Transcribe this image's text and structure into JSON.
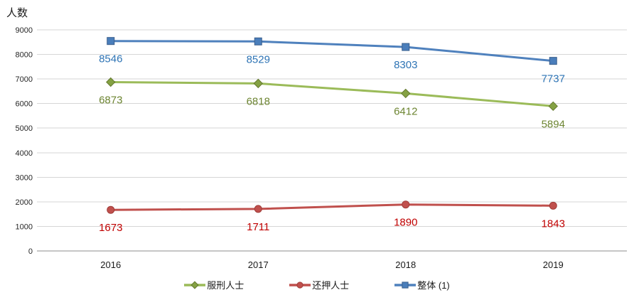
{
  "chart": {
    "background": "#FFFFFF",
    "grid_color": "#D6D6D6",
    "axis_line_color": "#8C8C8C",
    "tick_label_color": "#262626",
    "category_label_color": "#1A1A1A"
  },
  "chart_data": {
    "type": "line",
    "title": "",
    "ylabel": "人数",
    "xlabel": "",
    "categories": [
      "2016",
      "2017",
      "2018",
      "2019"
    ],
    "series": [
      {
        "name": "服刑人士",
        "values": [
          6873,
          6818,
          6412,
          5894
        ],
        "line_color": "#9BBB59",
        "marker": "diamond",
        "marker_fill": "#84A143",
        "marker_stroke": "#64792F",
        "label_color": "#6D8532"
      },
      {
        "name": "还押人士",
        "values": [
          1673,
          1711,
          1890,
          1843
        ],
        "line_color": "#C0504D",
        "marker": "circle",
        "marker_fill": "#C0504D",
        "marker_stroke": "#A03C39",
        "label_color": "#C00000"
      },
      {
        "name": "整体 (1)",
        "values": [
          8546,
          8529,
          8303,
          7737
        ],
        "line_color": "#4F81BD",
        "marker": "square",
        "marker_fill": "#4A7EBB",
        "marker_stroke": "#3A5F8C",
        "label_color": "#2E74B5"
      }
    ],
    "ylim": [
      0,
      9000
    ],
    "ytick_step": 1000,
    "grid": true,
    "legend_position": "bottom",
    "data_labels": "below-points"
  }
}
